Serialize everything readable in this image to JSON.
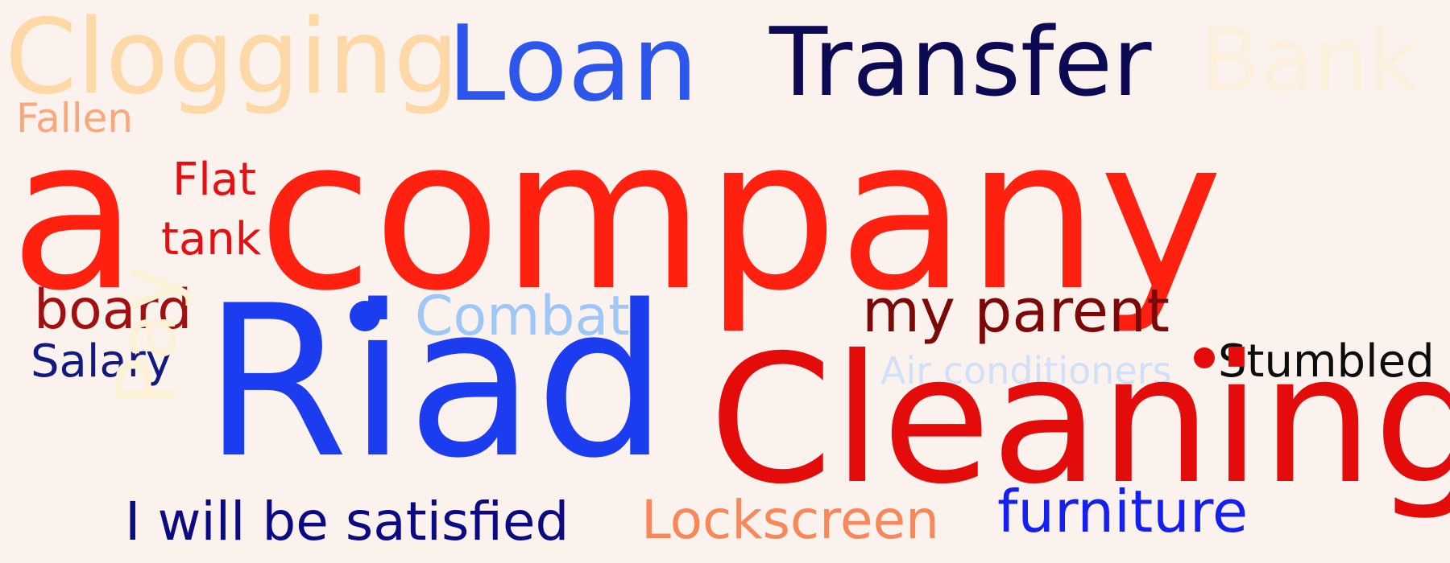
{
  "words": {
    "clogging": {
      "text": "Clogging",
      "color": "#ffd8a8"
    },
    "loan": {
      "text": "Loan",
      "color": "#2d57ec"
    },
    "transfer": {
      "text": "Transfer",
      "color": "#0c0a52"
    },
    "bank": {
      "text": "Bank",
      "color": "#fdf0dc"
    },
    "fallen": {
      "text": "Fallen",
      "color": "#f9a87c"
    },
    "a": {
      "text": "a",
      "color": "#ff200f"
    },
    "company": {
      "text": "company",
      "color": "#ff200f"
    },
    "flat": {
      "text": "Flat",
      "color": "#e41012"
    },
    "tank": {
      "text": "tank",
      "color": "#e41012"
    },
    "board": {
      "text": "board",
      "color": "#a11010"
    },
    "combat": {
      "text": "Combat",
      "color": "#9ec7f7"
    },
    "myparent": {
      "text": "my parent",
      "color": "#7c0808"
    },
    "salary": {
      "text": "Salary",
      "color": "#121a82"
    },
    "riad": {
      "text": "Riad",
      "color": "#1c3cf0"
    },
    "air": {
      "text": "Air conditioners",
      "color": "#cfe0f8"
    },
    "stumbled": {
      "text": "Stumbled",
      "color": "#0c0c0c"
    },
    "cleaning": {
      "text": "Cleaning",
      "color": "#e40b0b"
    },
    "satisfied": {
      "text": "I will be satisfied",
      "color": "#0c0a82"
    },
    "lockscreen": {
      "text": "Lockscreen",
      "color": "#f8885a"
    },
    "furniture": {
      "text": "furniture",
      "color": "#1520f0"
    },
    "pay": {
      "text": "Pay",
      "color": "#fdf1d6"
    }
  },
  "dots": {
    "riad": {
      "color": "#1c3cf0"
    },
    "stumbled": {
      "color": "#e40b0b"
    }
  }
}
